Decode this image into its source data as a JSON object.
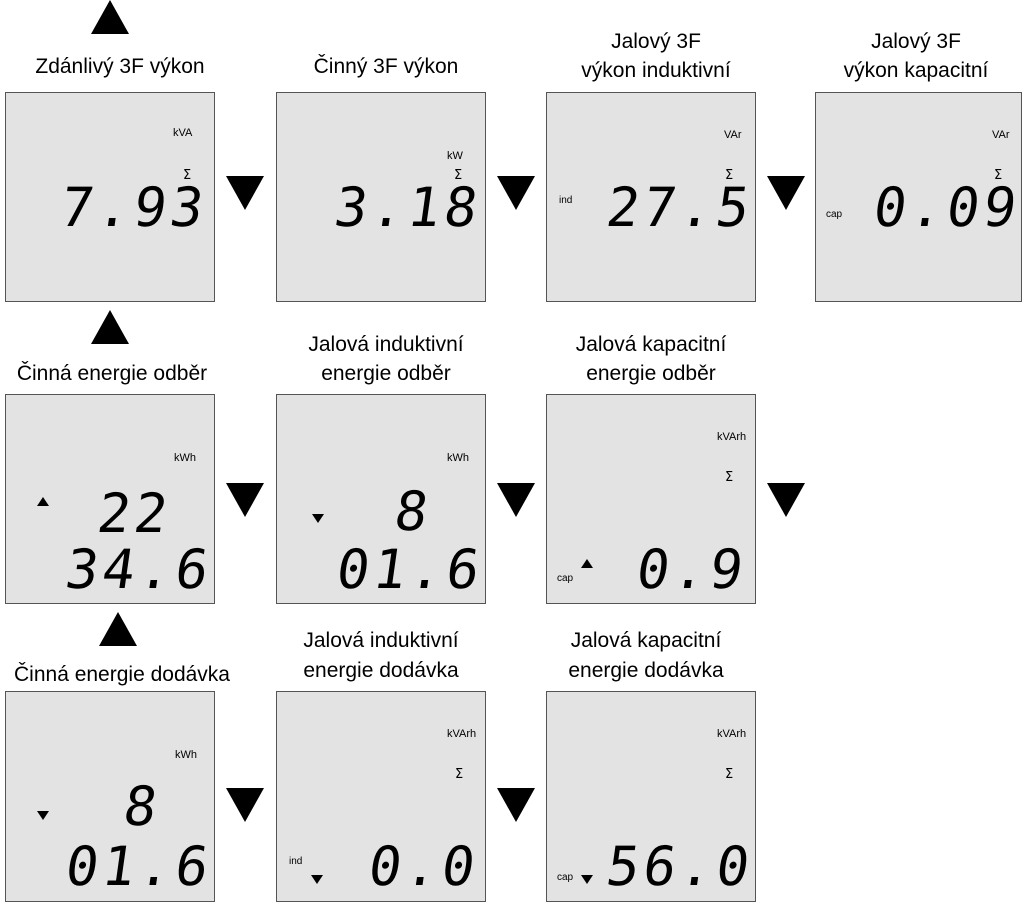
{
  "titles": {
    "t1": "Zdánlivý 3F výkon",
    "t2": "Činný 3F výkon",
    "t3a": "Jalový 3F",
    "t3b": "výkon induktivní",
    "t4a": "Jalový 3F",
    "t4b": "výkon kapacitní",
    "t5": "Činná energie odběr",
    "t6a": "Jalová induktivní",
    "t6b": "energie odběr",
    "t7a": "Jalová kapacitní",
    "t7b": "energie odběr",
    "t8": "Činná energie dodávka",
    "t9a": "Jalová induktivní",
    "t9b": "energie dodávka",
    "t10a": "Jalová kapacitní",
    "t10b": "energie dodávka"
  },
  "panels": {
    "p1": {
      "unit": "kVA",
      "sigma": "Σ",
      "value": "7.93"
    },
    "p2": {
      "unit": "kW",
      "sigma": "Σ",
      "value": "3.18"
    },
    "p3": {
      "unit": "VAr",
      "sigma": "Σ",
      "tag": "ind",
      "value": "27.5"
    },
    "p4": {
      "unit": "VAr",
      "sigma": "Σ",
      "tag": "cap",
      "value": "0.09"
    },
    "p5": {
      "unit": "kWh",
      "line1": "22",
      "line2": "34.6"
    },
    "p6": {
      "unit": "kWh",
      "line1": "8",
      "line2": "01.6"
    },
    "p7": {
      "unit": "kVArh",
      "sigma": "Σ",
      "tag": "cap",
      "value": "0.9"
    },
    "p8": {
      "unit": "kWh",
      "line1": "8",
      "line2": "01.6"
    },
    "p9": {
      "unit": "kVArh",
      "sigma": "Σ",
      "tag": "ind",
      "value": "0.0"
    },
    "p10": {
      "unit": "kVArh",
      "sigma": "Σ",
      "tag": "cap",
      "value": "56.0"
    }
  }
}
